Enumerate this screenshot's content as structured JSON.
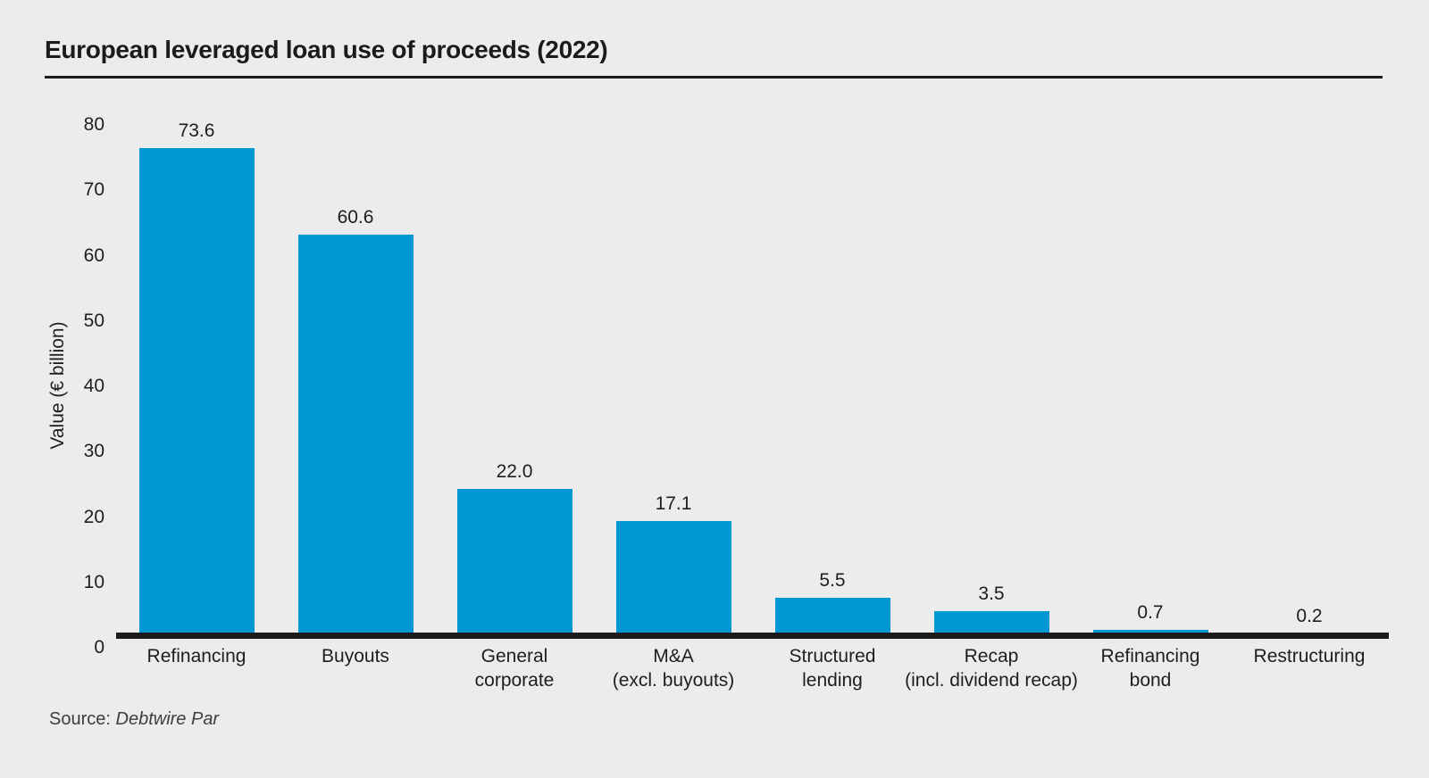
{
  "title": "European leveraged loan use of proceeds (2022)",
  "source": {
    "prefix": "Source:",
    "name": "Debtwire Par"
  },
  "colors": {
    "background": "#ececec",
    "bar": "#0098d4",
    "axis": "#1b1b1b",
    "text": "#1e1e1e",
    "source_text": "#3d3d3d"
  },
  "chart_data": {
    "type": "bar",
    "title": "European leveraged loan use of proceeds (2022)",
    "xlabel": "",
    "ylabel": "Value (€ billion)",
    "ylim": [
      0,
      80
    ],
    "yticks": [
      0,
      10,
      20,
      30,
      40,
      50,
      60,
      70,
      80
    ],
    "grid": false,
    "legend": false,
    "bar_color": "#0098d4",
    "categories": [
      "Refinancing",
      "Buyouts",
      "General corporate",
      "M&A (excl. buyouts)",
      "Structured lending",
      "Recap (incl. dividend recap)",
      "Refinancing bond",
      "Restructuring"
    ],
    "category_lines": [
      [
        "Refinancing"
      ],
      [
        "Buyouts"
      ],
      [
        "General",
        "corporate"
      ],
      [
        "M&A",
        "(excl. buyouts)"
      ],
      [
        "Structured",
        "lending"
      ],
      [
        "Recap",
        "(incl. dividend recap)"
      ],
      [
        "Refinancing",
        "bond"
      ],
      [
        "Restructuring"
      ]
    ],
    "values": [
      73.6,
      60.6,
      22.0,
      17.1,
      5.5,
      3.5,
      0.7,
      0.2
    ],
    "value_labels": [
      "73.6",
      "60.6",
      "22.0",
      "17.1",
      "5.5",
      "3.5",
      "0.7",
      "0.2"
    ],
    "source": "Debtwire Par"
  }
}
